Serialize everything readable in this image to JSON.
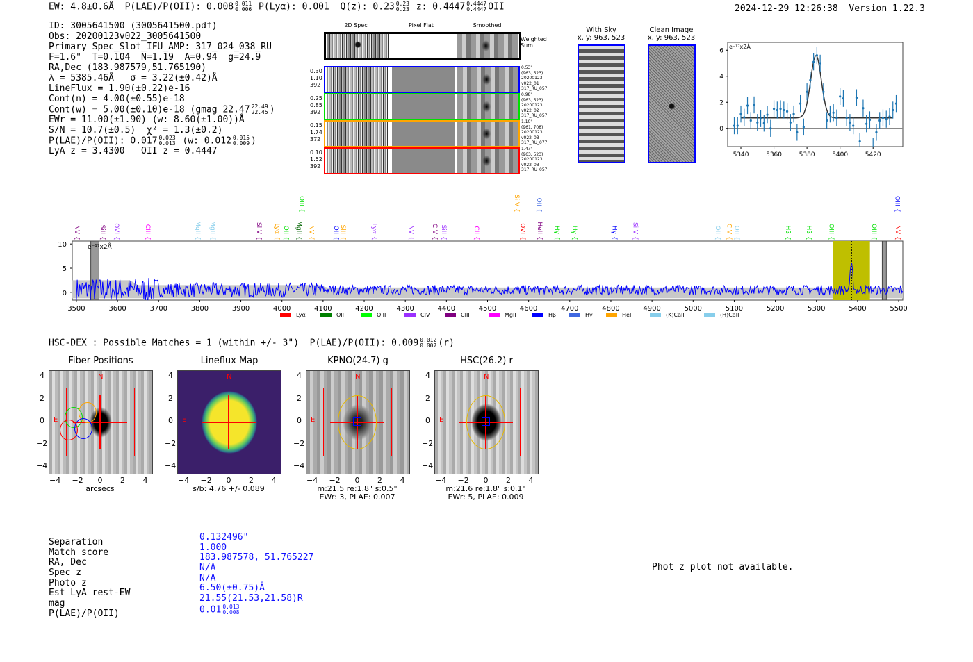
{
  "header": {
    "ew": "EW: 4.8±0.6Å",
    "plae_label": "P(LAE)/P(OII): 0.008",
    "plae_hi": "0.011",
    "plae_lo": "0.006",
    "plya": "P(Lyα): 0.001",
    "qz": "Q(z): 0.23",
    "qz_hi": "0.23",
    "qz_lo": "0.23",
    "z": "z: 0.4447",
    "z_hi": "0.4447",
    "z_lo": "0.4447",
    "z_line": "OII",
    "timestamp": "2024-12-29 12:26:38",
    "version": "Version 1.22.3"
  },
  "info": {
    "id": "ID: 3005641500 (3005641500.pdf)",
    "obs": "Obs: 20200123v022_3005641500",
    "primary": "Primary Spec_Slot_IFU_AMP: 317_024_038_RU",
    "params": "F=1.6\"  T=0.104  N=1.19  A=0.94  g=24.9",
    "radec": "RA,Dec (183.987579,51.765190)",
    "lambda": "λ = 5385.46Å   σ = 3.22(±0.42)Å",
    "lineflux": "LineFlux = 1.90(±0.22)e-16",
    "contn": "Cont(n) = 4.00(±0.55)e-18",
    "contw": "Cont(w) = 5.00(±0.10)e-18 (gmag 22.47",
    "contw_hi": "22.49",
    "contw_lo": "22.45",
    "contw_end": ")",
    "ewr": "EWr = 11.00(±1.90) (w: 8.60(±1.00))Å",
    "sn": "S/N = 10.7(±0.5)  χ² = 1.3(±0.2)",
    "plae": "P(LAE)/P(OII): 0.017",
    "plae_hi": "0.023",
    "plae_lo": "0.013",
    "plae_w": "(w: 0.012",
    "plae_w_hi": "0.015",
    "plae_w_lo": "0.009",
    "plae_end": ")",
    "zline": "LyA z = 3.4300   OII z = 0.4447"
  },
  "spec2d": {
    "col_headers": [
      "2D Spec",
      "Pixel Flat",
      "Smoothed"
    ],
    "weighted_label": "Weighted\nSum",
    "rows": [
      {
        "color": "#0000ff",
        "left": [
          "0.30",
          "1.10",
          "392"
        ],
        "right": [
          "0.53\"",
          "(963, 523)",
          "20200123",
          "v022_01",
          "317_RU_057"
        ]
      },
      {
        "color": "#00e000",
        "left": [
          "0.25",
          "0.85",
          "392"
        ],
        "right": [
          "0.98\"",
          "(963, 523)",
          "20200123",
          "v022_02",
          "317_RU_057"
        ]
      },
      {
        "color": "#ffa500",
        "left": [
          "0.15",
          "1.74",
          "372"
        ],
        "right": [
          "1.10\"",
          "(961, 708)",
          "20200123",
          "v022_03",
          "317_RU_077"
        ]
      },
      {
        "color": "#ff0000",
        "left": [
          "0.10",
          "1.52",
          "392"
        ],
        "right": [
          "1.47\"",
          "(963, 523)",
          "20200123",
          "v022_03",
          "317_RU_057"
        ]
      }
    ]
  },
  "sky": {
    "with_sky": "With Sky",
    "with_sky_xy": "x, y: 963, 523",
    "clean": "Clean Image",
    "clean_xy": "x, y: 963, 523"
  },
  "chart_data": [
    {
      "type": "scatter",
      "title": "",
      "unit_label": "e⁻¹⁷x2Å",
      "xlim": [
        5332,
        5438
      ],
      "ylim": [
        -1.4,
        6.6
      ],
      "xticks": [
        5340,
        5360,
        5380,
        5400,
        5420
      ],
      "yticks": [
        0,
        2,
        4,
        6
      ],
      "x": [
        5336,
        5338,
        5340,
        5342,
        5344,
        5346,
        5348,
        5350,
        5352,
        5354,
        5356,
        5358,
        5360,
        5362,
        5364,
        5366,
        5368,
        5370,
        5372,
        5374,
        5376,
        5378,
        5380,
        5382,
        5384,
        5386,
        5388,
        5390,
        5392,
        5394,
        5396,
        5398,
        5400,
        5402,
        5404,
        5406,
        5408,
        5410,
        5412,
        5414,
        5416,
        5418,
        5420,
        5422,
        5424,
        5426,
        5428,
        5430,
        5432,
        5434
      ],
      "y": [
        0.2,
        0.2,
        1.1,
        0.85,
        1.75,
        0.6,
        1.8,
        0.45,
        0.75,
        0.4,
        1.05,
        0.0,
        1.5,
        1.4,
        1.5,
        1.4,
        1.3,
        0.45,
        1.1,
        -0.3,
        1.9,
        0.1,
        2.8,
        3.7,
        5.1,
        5.6,
        5.0,
        2.8,
        0.6,
        1.1,
        1.2,
        0.8,
        2.45,
        2.3,
        0.8,
        0.45,
        0.2,
        2.35,
        -1.0,
        1.55,
        0.35,
        0.65,
        -1.4,
        -0.3,
        0.6,
        0.8,
        0.7,
        0.9,
        1.4,
        1.9
      ],
      "yerr": 0.65,
      "model": {
        "center": 5385.46,
        "sigma": 3.22,
        "continuum": 0.8,
        "amplitude": 4.8,
        "xrange": [
          5340,
          5432
        ]
      }
    },
    {
      "type": "line",
      "unit_label": "e⁻¹⁷x2Å",
      "xlim": [
        3490,
        5510
      ],
      "ylim": [
        -1.6,
        10.6
      ],
      "xticks": [
        3500,
        3600,
        3700,
        3800,
        3900,
        4000,
        4100,
        4200,
        4300,
        4400,
        4500,
        4600,
        4700,
        4800,
        4900,
        5000,
        5100,
        5200,
        5300,
        5400,
        5500
      ],
      "yticks": [
        0,
        5,
        10
      ],
      "highlight": [
        5340,
        5430
      ],
      "line_center": 5385.46,
      "masked": [
        [
          3535,
          3555
        ],
        [
          5460,
          5470
        ]
      ],
      "lines": [
        {
          "label": "NV",
          "w": 3502,
          "c": "#800080",
          "row": 0
        },
        {
          "label": "SiII",
          "w": 3564,
          "c": "#800080",
          "row": 0
        },
        {
          "label": "OVI",
          "w": 3598,
          "c": "#9b30ff",
          "row": 0
        },
        {
          "label": "CIII",
          "w": 3674,
          "c": "#ff00ff",
          "row": 0
        },
        {
          "label": "MgII",
          "w": 3796,
          "c": "#87ceeb",
          "row": 0
        },
        {
          "label": "MgII",
          "w": 3832,
          "c": "#87ceeb",
          "row": 0
        },
        {
          "label": "SiIV",
          "w": 3945,
          "c": "#800080",
          "row": 0
        },
        {
          "label": "Lyα",
          "w": 3989,
          "c": "#ffa500",
          "row": 0
        },
        {
          "label": "OII",
          "w": 4011,
          "c": "#00e000",
          "row": 0
        },
        {
          "label": "OIII",
          "w": 4049,
          "c": "#00e000",
          "row": 1
        },
        {
          "label": "MgII",
          "w": 4042,
          "c": "#006400",
          "row": 0
        },
        {
          "label": "NV",
          "w": 4072,
          "c": "#ffa500",
          "row": 0
        },
        {
          "label": "OII",
          "w": 4132,
          "c": "#0000ff",
          "row": 0
        },
        {
          "label": "SiII",
          "w": 4149,
          "c": "#ffa500",
          "row": 0
        },
        {
          "label": "Lyα",
          "w": 4225,
          "c": "#9b30ff",
          "row": 0
        },
        {
          "label": "NV",
          "w": 4315,
          "c": "#9b30ff",
          "row": 0
        },
        {
          "label": "CIV",
          "w": 4372,
          "c": "#800080",
          "row": 0
        },
        {
          "label": "SiII",
          "w": 4394,
          "c": "#9b30ff",
          "row": 0
        },
        {
          "label": "CII",
          "w": 4474,
          "c": "#ff00ff",
          "row": 0
        },
        {
          "label": "SiIV",
          "w": 4572,
          "c": "#ffa500",
          "row": 1
        },
        {
          "label": "OVI",
          "w": 4586,
          "c": "#ff0000",
          "row": 0
        },
        {
          "label": "OII",
          "w": 4626,
          "c": "#4169e1",
          "row": 1
        },
        {
          "label": "HeII",
          "w": 4628,
          "c": "#800080",
          "row": 0
        },
        {
          "label": "Hγ",
          "w": 4670,
          "c": "#00e000",
          "row": 0
        },
        {
          "label": "Hγ",
          "w": 4712,
          "c": "#00e000",
          "row": 0
        },
        {
          "label": "Hγ",
          "w": 4809,
          "c": "#0000ff",
          "row": 0
        },
        {
          "label": "SiIV",
          "w": 4860,
          "c": "#9b30ff",
          "row": 0
        },
        {
          "label": "OII",
          "w": 5060,
          "c": "#87ceeb",
          "row": 0
        },
        {
          "label": "CIV",
          "w": 5088,
          "c": "#ffa500",
          "row": 0
        },
        {
          "label": "OII",
          "w": 5107,
          "c": "#87ceeb",
          "row": 0
        },
        {
          "label": "Hβ",
          "w": 5231,
          "c": "#00e000",
          "row": 0
        },
        {
          "label": "Hβ",
          "w": 5282,
          "c": "#00e000",
          "row": 0
        },
        {
          "label": "OIII",
          "w": 5337,
          "c": "#00e000",
          "row": 0
        },
        {
          "label": "OIII",
          "w": 5441,
          "c": "#00e000",
          "row": 0
        },
        {
          "label": "NV",
          "w": 5498,
          "c": "#ff0000",
          "row": 0
        },
        {
          "label": "OIII",
          "w": 5497,
          "c": "#0000ff",
          "row": 1
        }
      ],
      "legend": [
        {
          "label": "Lyα",
          "c": "#ff0000"
        },
        {
          "label": "OII",
          "c": "#008000"
        },
        {
          "label": "OIII",
          "c": "#00ff00"
        },
        {
          "label": "CIV",
          "c": "#9b30ff"
        },
        {
          "label": "CIII",
          "c": "#800080"
        },
        {
          "label": "MgII",
          "c": "#ff00ff"
        },
        {
          "label": "Hβ",
          "c": "#0000ff"
        },
        {
          "label": "Hγ",
          "c": "#4169e1"
        },
        {
          "label": "HeII",
          "c": "#ffa500"
        },
        {
          "label": "(K)CaII",
          "c": "#87ceeb"
        },
        {
          "label": "(H)CaII",
          "c": "#87ceeb"
        }
      ]
    }
  ],
  "hsc": {
    "line": "HSC-DEX : Possible Matches = 1 (within +/- 3\")  P(LAE)/P(OII): 0.009",
    "hi": "0.012",
    "lo": "0.007",
    "end": "(r)"
  },
  "cutouts": [
    {
      "title": "Fiber Positions",
      "cap1": "arcsecs",
      "cap2": ""
    },
    {
      "title": "Lineflux Map",
      "cap1": "s/b: 4.76 +/- 0.089",
      "cap2": ""
    },
    {
      "title": "KPNO(24.7) g",
      "cap1": "m:21.5  re:1.8\"  s:0.5\"",
      "cap2": "EWr: 3, PLAE: 0.007"
    },
    {
      "title": "HSC(26.2) r",
      "cap1": "m:21.6  re:1.8\"  s:0.1\"",
      "cap2": "EWr: 5, PLAE: 0.009"
    }
  ],
  "cutout_ticks": [
    "4",
    "2",
    "0",
    "−2",
    "−4"
  ],
  "cutout_xticks": [
    "−4",
    "−2",
    "0",
    "2",
    "4"
  ],
  "compass": {
    "n": "N",
    "e": "E"
  },
  "match": {
    "labels": [
      "Separation",
      "Match score",
      "RA, Dec",
      "Spec z",
      "Photo z",
      "Est LyA rest-EW",
      "mag",
      "P(LAE)/P(OII)"
    ],
    "values": [
      "0.132496\"",
      "1.000",
      "183.987578, 51.765227",
      "N/A",
      "N/A",
      "6.50(±0.75)Å",
      "21.55(21.53,21.58)R",
      "0.01"
    ],
    "plae_hi": "0.013",
    "plae_lo": "0.008"
  },
  "photz": "Phot z plot not available."
}
